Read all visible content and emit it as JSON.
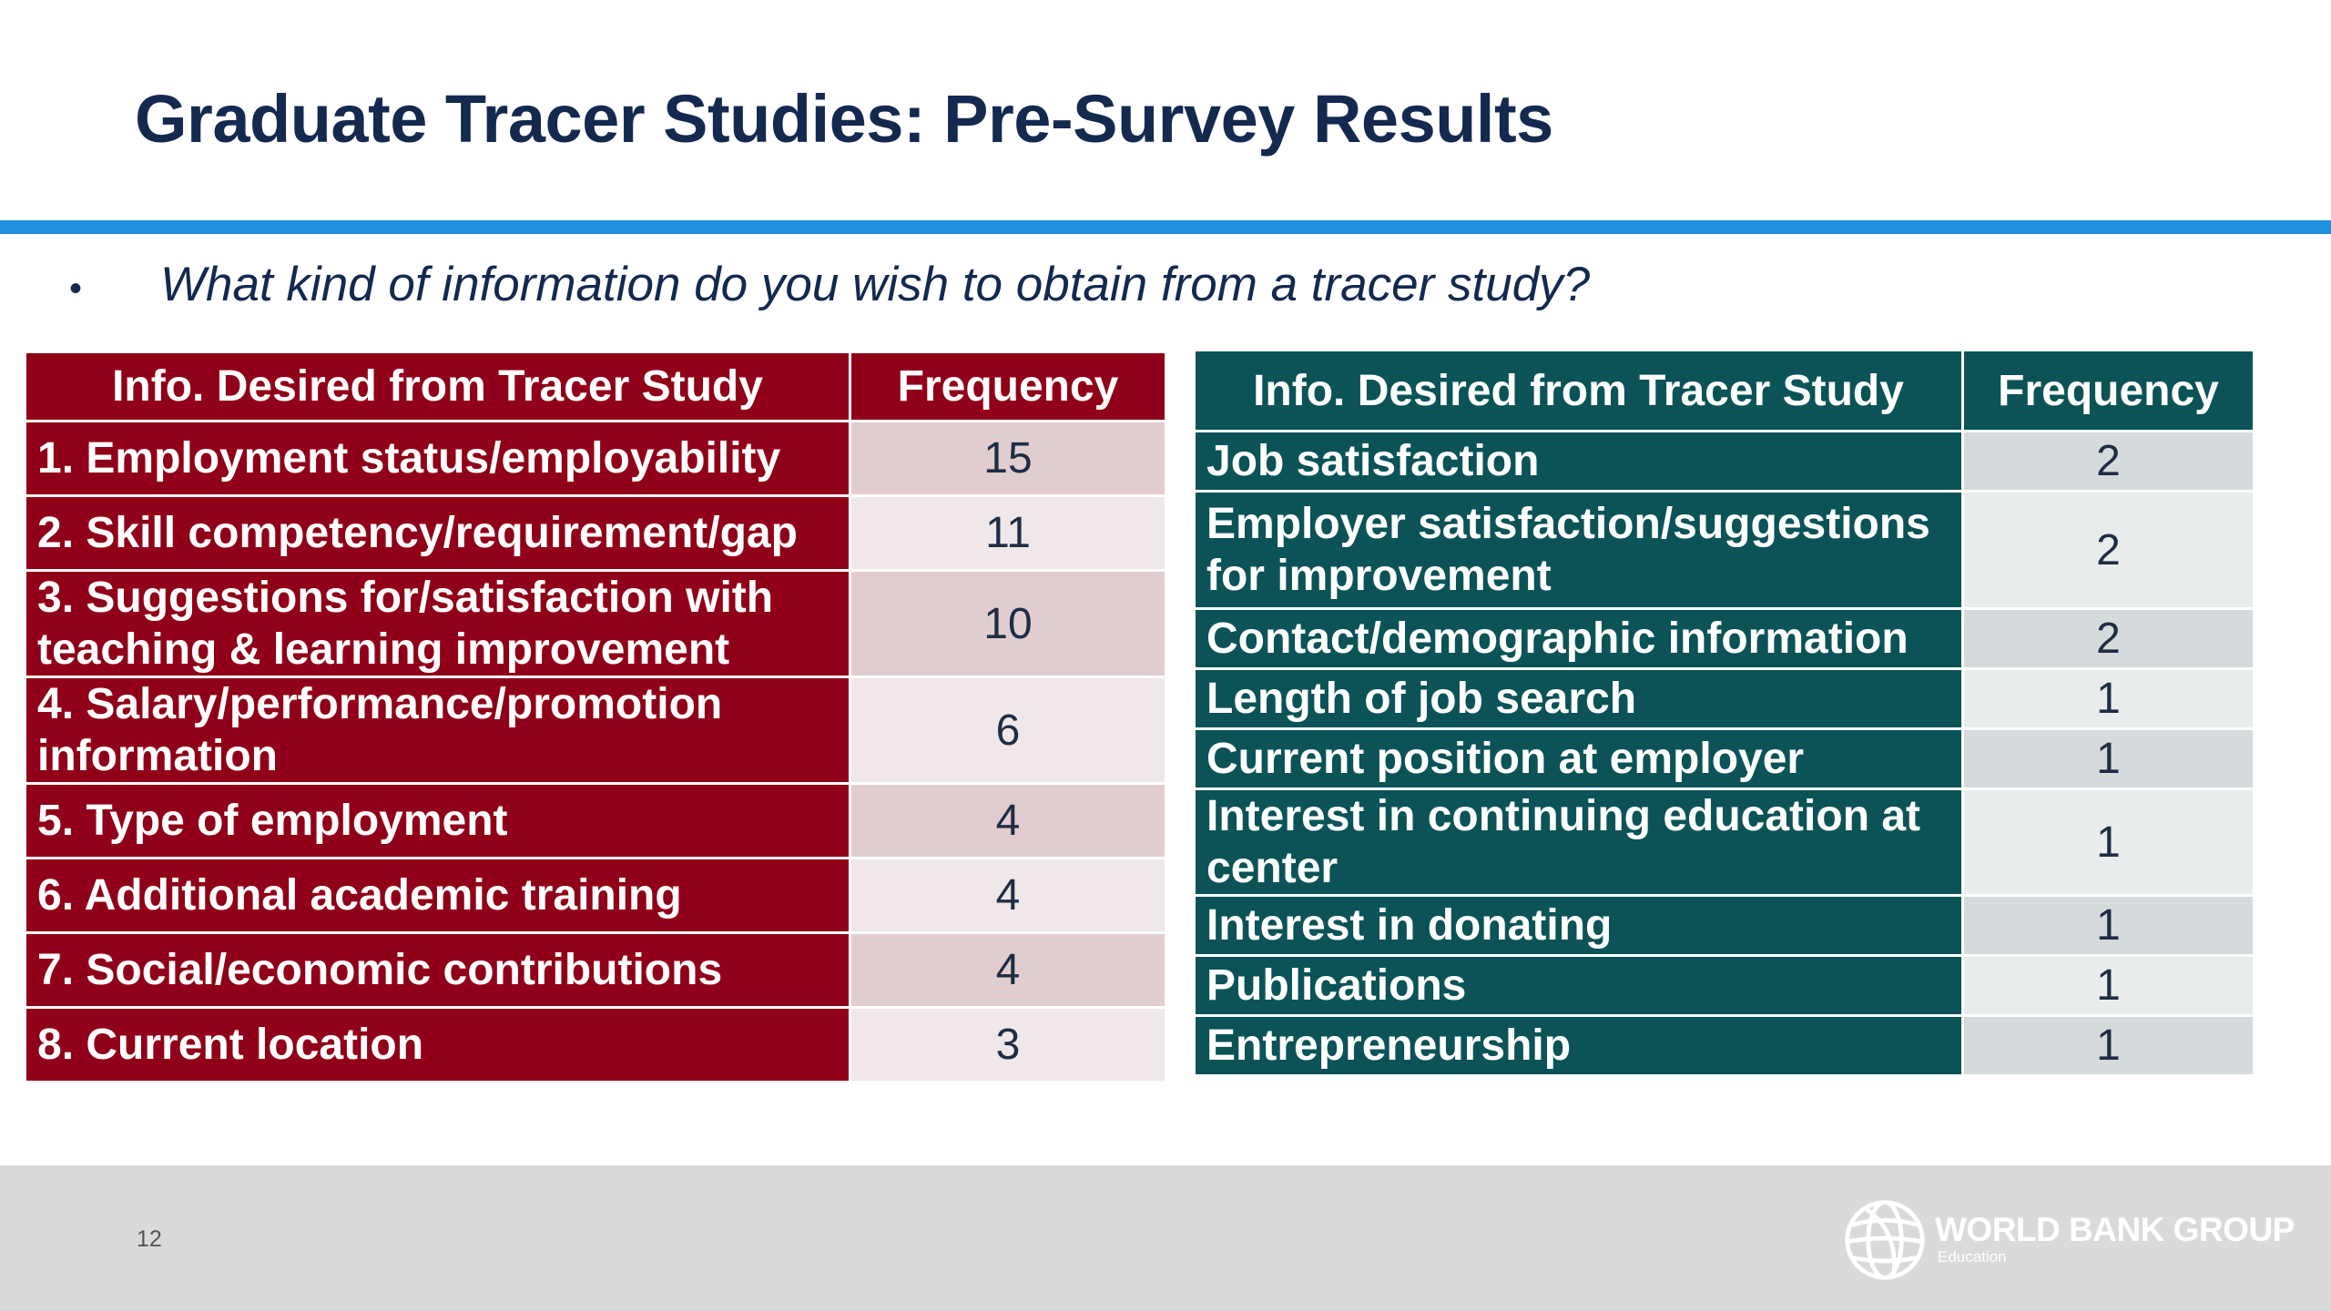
{
  "title": "Graduate Tracer Studies: Pre-Survey Results",
  "question": {
    "bullet": "•",
    "text": "What kind of information do you wish to obtain from a tracer study?"
  },
  "table_left": {
    "headers": [
      "Info. Desired from Tracer Study",
      "Frequency"
    ],
    "rows": [
      {
        "item": "1. Employment status/employability",
        "frequency": "15"
      },
      {
        "item": "2. Skill competency/requirement/gap",
        "frequency": "11"
      },
      {
        "item": "3. Suggestions for/satisfaction with teaching & learning improvement",
        "frequency": "10"
      },
      {
        "item": "4. Salary/performance/promotion information",
        "frequency": "6"
      },
      {
        "item": "5. Type of employment",
        "frequency": "4"
      },
      {
        "item": "6. Additional academic training",
        "frequency": "4"
      },
      {
        "item": "7. Social/economic contributions",
        "frequency": "4"
      },
      {
        "item": "8. Current location",
        "frequency": "3"
      }
    ]
  },
  "table_right": {
    "headers": [
      "Info. Desired from Tracer Study",
      "Frequency"
    ],
    "rows": [
      {
        "item": "Job satisfaction",
        "frequency": "2"
      },
      {
        "item": "Employer satisfaction/suggestions for improvement",
        "frequency": "2"
      },
      {
        "item": "Contact/demographic information",
        "frequency": "2"
      },
      {
        "item": "Length of job search",
        "frequency": "1"
      },
      {
        "item": "Current position at employer",
        "frequency": "1"
      },
      {
        "item": "Interest in continuing education at center",
        "frequency": "1"
      },
      {
        "item": "Interest in donating",
        "frequency": "1"
      },
      {
        "item": "Publications",
        "frequency": "1"
      },
      {
        "item": "Entrepreneurship",
        "frequency": "1"
      }
    ]
  },
  "footer": {
    "page_number": "12",
    "logo_name": "WORLD BANK GROUP",
    "logo_sub": "Education"
  },
  "colors": {
    "title": "#14294f",
    "rule": "#1f8fe0",
    "left_table_fill": "#900018",
    "right_table_fill": "#0b5356",
    "footer_band": "#dadada"
  },
  "icons": [
    "globe-icon"
  ]
}
